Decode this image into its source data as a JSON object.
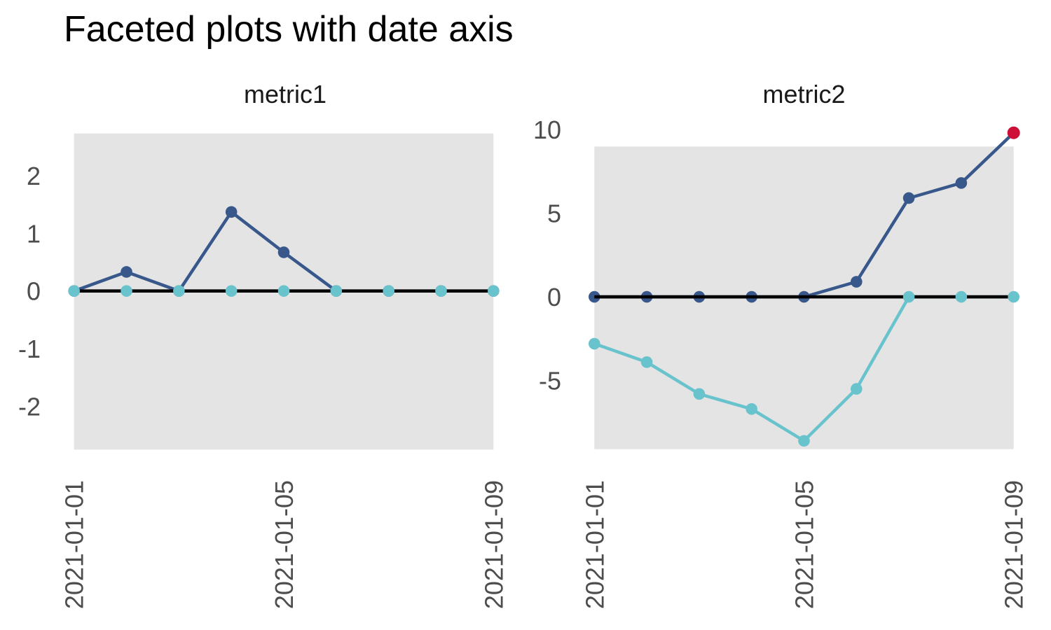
{
  "title": "Faceted plots with date axis",
  "colors": {
    "navy": "#38588C",
    "teal": "#69C3CD",
    "red": "#CD0F37",
    "panel_bg": "#E4E4E4",
    "zero_line": "#000000",
    "axis_text": "#4D4D4D",
    "facet_title_text": "#1A1A1A",
    "title_text": "#000000"
  },
  "chart_data": [
    {
      "type": "line",
      "facet_label": "metric1",
      "x": [
        "2021-01-01",
        "2021-01-02",
        "2021-01-03",
        "2021-01-04",
        "2021-01-05",
        "2021-01-06",
        "2021-01-07",
        "2021-01-08",
        "2021-01-09"
      ],
      "series": [
        {
          "name": "navy-series",
          "color": "#38588C",
          "values": [
            0,
            0.33,
            0,
            1.37,
            0.67,
            0,
            0,
            0,
            0
          ]
        },
        {
          "name": "teal-series",
          "color": "#69C3CD",
          "values": [
            0,
            0,
            0,
            0,
            0,
            0,
            0,
            0,
            0
          ]
        }
      ],
      "yticks": [
        2,
        1,
        0,
        -1,
        -2
      ],
      "ylim": [
        -2.75,
        2.73
      ],
      "xtick_labels": [
        "2021-01-01",
        "2021-01-05",
        "2021-01-09"
      ],
      "hline": 0,
      "grid": false,
      "legend": false
    },
    {
      "type": "line",
      "facet_label": "metric2",
      "x": [
        "2021-01-01",
        "2021-01-02",
        "2021-01-03",
        "2021-01-04",
        "2021-01-05",
        "2021-01-06",
        "2021-01-07",
        "2021-01-08",
        "2021-01-09"
      ],
      "series": [
        {
          "name": "navy-series",
          "color": "#38588C",
          "values": [
            0,
            0,
            0,
            0,
            0,
            0.9,
            5.9,
            6.8,
            9.8
          ]
        },
        {
          "name": "teal-series",
          "color": "#69C3CD",
          "values": [
            -2.8,
            -3.9,
            -5.8,
            -6.7,
            -8.6,
            -5.5,
            0,
            0,
            0
          ]
        }
      ],
      "highlight": {
        "series": 0,
        "index": 8,
        "color": "#CD0F37"
      },
      "yticks": [
        10,
        5,
        0,
        -5
      ],
      "ylim": [
        -9.1,
        8.98
      ],
      "xtick_labels": [
        "2021-01-01",
        "2021-01-05",
        "2021-01-09"
      ],
      "hline": 0,
      "grid": false,
      "legend": false
    }
  ]
}
